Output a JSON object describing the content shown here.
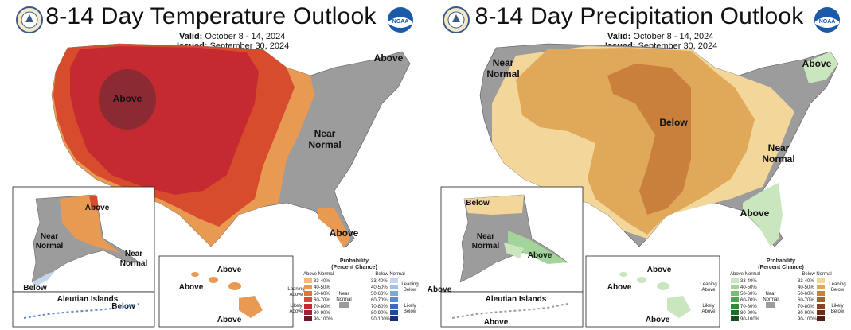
{
  "panels": [
    {
      "title": "8-14 Day Temperature Outlook",
      "valid_label": "Valid:",
      "valid_value": "October 8 - 14, 2024",
      "issued_label": "Issued:",
      "issued_value": "September 30, 2024",
      "map_labels": {
        "center": "Above",
        "northeast": "Above",
        "southeast_near": "Near",
        "southeast_normal": "Normal",
        "florida": "Above",
        "alaska_above": "Above",
        "alaska_near": "Near",
        "alaska_normal": "Normal",
        "alaska_near2": "Near",
        "alaska_normal2": "Normal",
        "alaska_below": "Below",
        "aleutian_title": "Aleutian Islands",
        "aleutian_below": "Below",
        "hawaii_above1": "Above",
        "hawaii_above2": "Above",
        "hawaii_above3": "Above"
      },
      "legend": {
        "title_line1": "Probability",
        "title_line2": "(Percent Chance)",
        "left_header": "Above Normal",
        "right_header": "Below Normal",
        "left_top_label_1": "Leaning",
        "left_top_label_2": "Above",
        "left_bottom_label_1": "Likely",
        "left_bottom_label_2": "Above",
        "middle_label_1": "Near",
        "middle_label_2": "Normal",
        "right_top_label_1": "Leaning",
        "right_top_label_2": "Below",
        "right_bottom_label_1": "Likely",
        "right_bottom_label_2": "Below",
        "ranges": [
          "33-40%",
          "40-50%",
          "50-60%",
          "60-70%",
          "70-80%",
          "80-90%",
          "90-100%"
        ],
        "left_colors": [
          "#f2b97a",
          "#e99a52",
          "#e27838",
          "#d84c2e",
          "#c62a31",
          "#9b2436",
          "#6b1a28"
        ],
        "right_colors": [
          "#c6d4ee",
          "#a5c0e8",
          "#7ea7de",
          "#5b8ad0",
          "#3b6cb8",
          "#23499a",
          "#1a2f6e"
        ],
        "near_color": "#9c9c9c"
      }
    },
    {
      "title": "8-14 Day Precipitation Outlook",
      "valid_label": "Valid:",
      "valid_value": "October 8 - 14, 2024",
      "issued_label": "Issued:",
      "issued_value": "September 30, 2024",
      "map_labels": {
        "nw_near": "Near",
        "nw_normal": "Normal",
        "center": "Below",
        "northeast": "Above",
        "east_near": "Near",
        "east_normal": "Normal",
        "southeast": "Above",
        "alaska_below": "Below",
        "alaska_near": "Near",
        "alaska_normal": "Normal",
        "alaska_above": "Above",
        "alaska_above_sw": "Above",
        "aleutian_title": "Aleutian Islands",
        "aleutian_above": "Above",
        "hawaii_above1": "Above",
        "hawaii_above2": "Above",
        "hawaii_above3": "Above"
      },
      "legend": {
        "title_line1": "Probability",
        "title_line2": "(Percent Chance)",
        "left_header": "Above Normal",
        "right_header": "Below Normal",
        "left_top_label_1": "Leaning",
        "left_top_label_2": "Above",
        "left_bottom_label_1": "Likely",
        "left_bottom_label_2": "Above",
        "middle_label_1": "Near",
        "middle_label_2": "Normal",
        "right_top_label_1": "Leaning",
        "right_top_label_2": "Below",
        "right_bottom_label_1": "Likely",
        "right_bottom_label_2": "Below",
        "ranges": [
          "33-40%",
          "40-50%",
          "50-60%",
          "60-70%",
          "70-80%",
          "80-90%",
          "90-100%"
        ],
        "left_colors": [
          "#c9e6bf",
          "#a3d49a",
          "#78bf73",
          "#4fa652",
          "#2e8a3b",
          "#1f6d2c",
          "#14501f"
        ],
        "right_colors": [
          "#f3d69a",
          "#e0a95a",
          "#c9803d",
          "#a75f2e",
          "#874423",
          "#66301a",
          "#4a2212"
        ],
        "near_color": "#9c9c9c"
      }
    }
  ],
  "colors": {
    "near_normal_gray": "#9c9c9c",
    "temp_above_40": "#e99a52",
    "temp_above_60": "#d84c2e",
    "temp_above_70": "#c62a31",
    "temp_above_80": "#8c2a33",
    "temp_above_90": "#6b1a28",
    "precip_below_33": "#f3d69a",
    "precip_below_40": "#e0a95a",
    "precip_below_50": "#c9803d",
    "precip_above_33": "#c9e6bf"
  },
  "icons": [
    "commerce-seal-icon",
    "noaa-logo-icon"
  ]
}
